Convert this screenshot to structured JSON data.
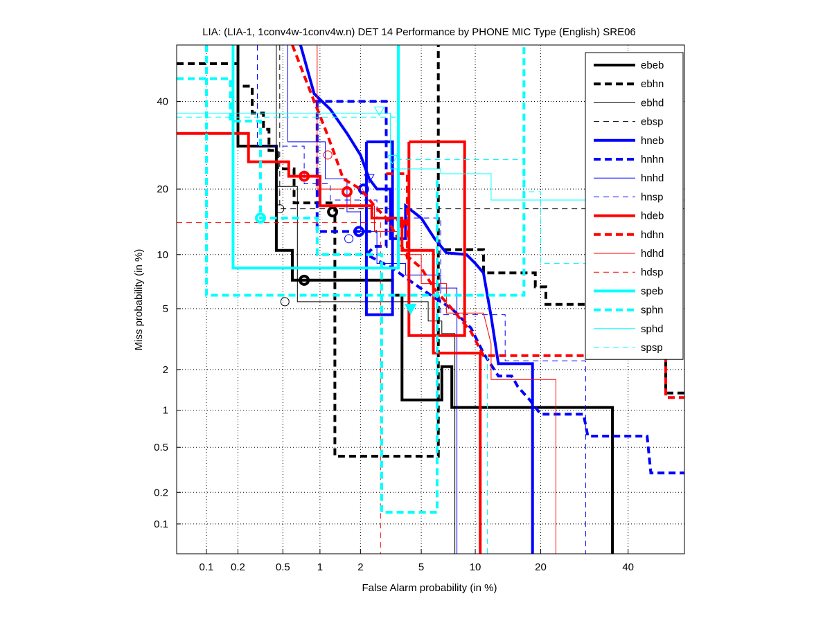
{
  "chart_data": {
    "type": "line",
    "scale": "probit",
    "title": "LIA: (LIA-1, 1conv4w-1conv4w.n) DET 14 Performance by PHONE MIC Type (English) SRE06",
    "xlabel": "False Alarm probability (in %)",
    "ylabel": "Miss probability (in %)",
    "xlim": [
      0.05,
      55
    ],
    "ylim": [
      0.05,
      55
    ],
    "xticks": [
      0.1,
      0.2,
      0.5,
      1,
      2,
      5,
      10,
      20,
      40
    ],
    "xtick_labels": [
      "0.1",
      "0.2",
      "0.5",
      "1",
      "2",
      "5",
      "10",
      "20",
      "40"
    ],
    "yticks": [
      0.1,
      0.2,
      0.5,
      1,
      2,
      5,
      10,
      20,
      40
    ],
    "ytick_labels": [
      "0.1",
      "0.2",
      "0.5",
      "1",
      "2",
      "5",
      "10",
      "20",
      "40"
    ],
    "grid": true,
    "legend_position": "top-right",
    "series": [
      {
        "name": "ebeb",
        "color": "#000000",
        "style": "solid-thick",
        "points": [
          [
            0.2,
            55
          ],
          [
            0.2,
            29
          ],
          [
            0.44,
            29
          ],
          [
            0.44,
            10.5
          ],
          [
            0.6,
            10.5
          ],
          [
            0.6,
            7.3
          ],
          [
            3.3,
            7.3
          ],
          [
            3.3,
            6
          ],
          [
            3.8,
            6
          ],
          [
            3.8,
            1.2
          ],
          [
            6.6,
            1.2
          ],
          [
            6.6,
            2.1
          ],
          [
            7.5,
            2.1
          ],
          [
            7.5,
            1.05
          ],
          [
            36,
            1.05
          ],
          [
            36,
            0.05
          ]
        ],
        "marker": {
          "type": "circle",
          "x": 0.75,
          "y": 7.3
        }
      },
      {
        "name": "ebhn",
        "color": "#000000",
        "style": "dashed-thick",
        "points": [
          [
            0.05,
            50
          ],
          [
            0.2,
            50
          ],
          [
            0.2,
            44
          ],
          [
            0.27,
            44
          ],
          [
            0.27,
            37
          ],
          [
            0.34,
            37
          ],
          [
            0.34,
            33
          ],
          [
            0.38,
            33
          ],
          [
            0.38,
            28
          ],
          [
            0.45,
            28
          ],
          [
            0.45,
            24
          ],
          [
            0.62,
            24
          ],
          [
            0.62,
            17.5
          ],
          [
            1.3,
            17.5
          ],
          [
            1.3,
            0.42
          ],
          [
            6.3,
            0.42
          ],
          [
            6.3,
            55
          ]
        ],
        "extra": [
          [
            6.8,
            10.6
          ],
          [
            11,
            10.6
          ],
          [
            11,
            8
          ],
          [
            19,
            8
          ],
          [
            19,
            6.7
          ],
          [
            21,
            6.7
          ],
          [
            21,
            5.3
          ],
          [
            50,
            5.3
          ],
          [
            50,
            1.35
          ],
          [
            55,
            1.35
          ]
        ],
        "marker": {
          "type": "circle",
          "x": 1.25,
          "y": 16
        }
      },
      {
        "name": "ebhd",
        "color": "#000000",
        "style": "solid-thin",
        "points": [
          [
            0.44,
            55
          ],
          [
            0.44,
            20.5
          ],
          [
            0.66,
            20.5
          ],
          [
            0.66,
            5.5
          ],
          [
            5.5,
            5.5
          ],
          [
            5.5,
            4.2
          ],
          [
            6.6,
            4.2
          ],
          [
            6.6,
            3.5
          ],
          [
            7.8,
            3.5
          ],
          [
            7.8,
            0.05
          ]
        ],
        "marker": {
          "type": "circle-open",
          "x": 0.52,
          "y": 5.5
        }
      },
      {
        "name": "ebsp",
        "color": "#000000",
        "style": "dashed-thin",
        "points": [
          [
            0.47,
            55
          ],
          [
            0.47,
            16.5
          ],
          [
            55,
            16.5
          ]
        ],
        "marker": {
          "type": "circle-open",
          "x": 0.47,
          "y": 16.5
        }
      },
      {
        "name": "hneb",
        "color": "#0000ff",
        "style": "solid-thick",
        "points": [
          [
            0.7,
            55
          ],
          [
            0.9,
            42
          ],
          [
            1.2,
            38
          ],
          [
            1.6,
            32
          ],
          [
            2,
            27
          ],
          [
            2.3,
            22
          ],
          [
            2.6,
            20
          ],
          [
            3.2,
            20
          ],
          [
            3.2,
            12
          ],
          [
            4,
            12
          ],
          [
            4,
            17
          ],
          [
            5,
            15
          ],
          [
            6,
            12
          ],
          [
            7,
            10.2
          ],
          [
            9,
            10
          ],
          [
            10,
            9
          ],
          [
            11,
            8
          ],
          [
            11.5,
            6
          ],
          [
            12,
            4.5
          ],
          [
            13,
            2.2
          ],
          [
            15,
            2.2
          ],
          [
            18.5,
            2.2
          ],
          [
            18.5,
            0.05
          ]
        ],
        "extra": [
          [
            2.2,
            30
          ],
          [
            3.3,
            30
          ],
          [
            3.3,
            4.6
          ],
          [
            2.2,
            4.6
          ],
          [
            2.2,
            30
          ]
        ],
        "marker": {
          "type": "circle",
          "x": 2.1,
          "y": 20
        }
      },
      {
        "name": "hnhn",
        "color": "#0000ff",
        "style": "dashed-thick",
        "points": [
          [
            0.9,
            40
          ],
          [
            3,
            40
          ],
          [
            3,
            11
          ],
          [
            2.5,
            11
          ],
          [
            2.2,
            10
          ],
          [
            3.3,
            8.5
          ],
          [
            4.5,
            7
          ],
          [
            5.7,
            6
          ],
          [
            7.5,
            5
          ],
          [
            9.5,
            3.8
          ],
          [
            11,
            2.6
          ],
          [
            13,
            1.8
          ],
          [
            15,
            1.8
          ],
          [
            16,
            1.5
          ],
          [
            18,
            1.2
          ],
          [
            20,
            0.93
          ],
          [
            29,
            0.93
          ],
          [
            30,
            0.62
          ],
          [
            45,
            0.62
          ],
          [
            46,
            0.3
          ],
          [
            55,
            0.3
          ]
        ],
        "extra": [
          [
            0.95,
            40
          ],
          [
            0.95,
            13
          ],
          [
            2.6,
            13
          ]
        ],
        "marker": {
          "type": "circle",
          "x": 1.95,
          "y": 13
        }
      },
      {
        "name": "hnhd",
        "color": "#0000ff",
        "style": "solid-thin",
        "points": [
          [
            0.55,
            55
          ],
          [
            0.55,
            30
          ],
          [
            1.1,
            30
          ],
          [
            1.1,
            22
          ],
          [
            1.6,
            22
          ],
          [
            1.6,
            16
          ],
          [
            2,
            16
          ],
          [
            2,
            13
          ],
          [
            2.6,
            13
          ],
          [
            2.6,
            9
          ],
          [
            4,
            9
          ],
          [
            4,
            7.8
          ],
          [
            6.5,
            7.8
          ],
          [
            6.5,
            6.6
          ],
          [
            8,
            6.6
          ],
          [
            8,
            0.05
          ]
        ],
        "marker": {
          "type": "circle-open",
          "x": 1.65,
          "y": 12
        }
      },
      {
        "name": "hnsp",
        "color": "#0000ff",
        "style": "dashed-thin",
        "points": [
          [
            0.3,
            55
          ],
          [
            0.3,
            29
          ],
          [
            0.75,
            29
          ],
          [
            0.75,
            21
          ],
          [
            1.2,
            21
          ],
          [
            1.2,
            18
          ],
          [
            2.6,
            18
          ],
          [
            2.6,
            15
          ],
          [
            6.5,
            15
          ],
          [
            6.5,
            4.6
          ],
          [
            14,
            4.6
          ],
          [
            14,
            2.3
          ],
          [
            29.5,
            2.3
          ],
          [
            29.5,
            0.05
          ]
        ],
        "marker": {
          "type": "triangle-down-open",
          "x": 2.3,
          "y": 22
        }
      },
      {
        "name": "hdeb",
        "color": "#ff0000",
        "style": "solid-thick",
        "points": [
          [
            0.05,
            32
          ],
          [
            0.25,
            32
          ],
          [
            0.25,
            25.5
          ],
          [
            0.56,
            25.5
          ],
          [
            0.56,
            22.5
          ],
          [
            1,
            22.5
          ],
          [
            1,
            17
          ],
          [
            2.4,
            17
          ],
          [
            2.4,
            15
          ],
          [
            3.8,
            15
          ],
          [
            3.8,
            10.5
          ],
          [
            5.9,
            10.5
          ],
          [
            5.9,
            2.6
          ],
          [
            10.6,
            2.6
          ],
          [
            10.6,
            0.05
          ]
        ],
        "extra": [
          [
            4.2,
            30
          ],
          [
            8.8,
            30
          ],
          [
            8.8,
            3.4
          ],
          [
            4.2,
            3.4
          ],
          [
            4.2,
            30
          ]
        ],
        "marker": {
          "type": "circle",
          "x": 0.75,
          "y": 22.5
        }
      },
      {
        "name": "hdhn",
        "color": "#ff0000",
        "style": "dashed-thick",
        "points": [
          [
            0.6,
            55
          ],
          [
            0.9,
            40
          ],
          [
            1.1,
            33
          ],
          [
            1.3,
            27
          ],
          [
            1.5,
            22
          ],
          [
            2,
            20
          ],
          [
            2.5,
            17
          ],
          [
            3,
            15
          ],
          [
            3.6,
            12
          ],
          [
            4,
            10
          ],
          [
            5,
            8.5
          ],
          [
            6,
            6.5
          ],
          [
            7.5,
            5
          ],
          [
            9.5,
            3.6
          ],
          [
            11,
            2.5
          ],
          [
            50,
            2.5
          ],
          [
            50,
            1.25
          ],
          [
            55,
            1.25
          ]
        ],
        "extra": [
          [
            3,
            23
          ],
          [
            4.1,
            23
          ],
          [
            4.1,
            9
          ]
        ],
        "marker": {
          "type": "circle",
          "x": 1.6,
          "y": 19.5
        }
      },
      {
        "name": "hdhd",
        "color": "#ff0000",
        "style": "solid-thin",
        "points": [
          [
            0.95,
            55
          ],
          [
            0.95,
            20
          ],
          [
            1.7,
            20
          ],
          [
            1.7,
            17
          ],
          [
            2.5,
            17
          ],
          [
            2.5,
            13
          ],
          [
            3.6,
            13
          ],
          [
            3.6,
            10
          ],
          [
            5,
            10
          ],
          [
            5,
            7
          ],
          [
            7,
            7
          ],
          [
            7,
            4.7
          ],
          [
            11,
            4.7
          ],
          [
            12,
            3
          ],
          [
            12,
            1.7
          ],
          [
            23,
            1.7
          ],
          [
            23,
            0.05
          ]
        ],
        "marker": {
          "type": "circle-open",
          "x": 1.15,
          "y": 27
        }
      },
      {
        "name": "hdsp",
        "color": "#ff0000",
        "style": "dashed-thin",
        "points": [
          [
            0.05,
            14.3
          ],
          [
            2.75,
            14.3
          ],
          [
            2.75,
            0.05
          ]
        ],
        "marker": {
          "type": "triangle-down",
          "x": 3.8,
          "y": 14
        }
      },
      {
        "name": "speb",
        "color": "#00ffff",
        "style": "solid-thick",
        "points": [
          [
            0.18,
            55
          ],
          [
            0.18,
            8.5
          ],
          [
            3.6,
            8.5
          ],
          [
            3.6,
            55
          ]
        ],
        "marker": {
          "type": "triangle-down",
          "x": 4.3,
          "y": 5
        }
      },
      {
        "name": "sphn",
        "color": "#00ffff",
        "style": "dashed-thick",
        "points": [
          [
            0.05,
            46
          ],
          [
            0.17,
            46
          ],
          [
            0.17,
            35
          ],
          [
            0.32,
            35
          ],
          [
            0.32,
            15
          ],
          [
            0.95,
            15
          ],
          [
            0.95,
            10
          ],
          [
            2.8,
            10
          ],
          [
            2.8,
            0.13
          ],
          [
            6.2,
            0.13
          ],
          [
            6.2,
            22
          ]
        ],
        "extra": [
          [
            0.1,
            55
          ],
          [
            0.1,
            6
          ],
          [
            17,
            6
          ],
          [
            17,
            55
          ]
        ],
        "marker": {
          "type": "circle",
          "x": 0.32,
          "y": 15
        }
      },
      {
        "name": "sphd",
        "color": "#00ffff",
        "style": "solid-thin",
        "points": [
          [
            0.05,
            37
          ],
          [
            3.2,
            37
          ],
          [
            3.2,
            24
          ],
          [
            6.5,
            24
          ],
          [
            6.5,
            23
          ],
          [
            12,
            23
          ],
          [
            12,
            18
          ],
          [
            55,
            18
          ]
        ],
        "marker": {
          "type": "triangle-down-open",
          "x": 2.7,
          "y": 37.5
        }
      },
      {
        "name": "spsp",
        "color": "#00ffff",
        "style": "dashed-thin",
        "points": [
          [
            0.05,
            36
          ],
          [
            3.6,
            36
          ],
          [
            3.6,
            26
          ],
          [
            17,
            26
          ],
          [
            17,
            19.5
          ],
          [
            20,
            19.5
          ],
          [
            20,
            9
          ],
          [
            55,
            9
          ]
        ],
        "extra": [
          [
            11.5,
            0.05
          ],
          [
            11.5,
            2.5
          ]
        ],
        "marker": {
          "type": "triangle-down-open",
          "x": 3.3,
          "y": 26
        }
      }
    ]
  }
}
